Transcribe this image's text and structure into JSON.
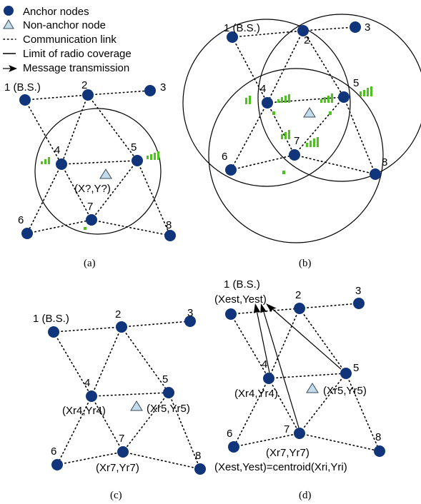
{
  "legend": {
    "anchor": "Anchor nodes",
    "non_anchor": "Non-anchor node",
    "link": "Communication link",
    "coverage": "Limit of radio coverage",
    "message": "Message transmission"
  },
  "captions": {
    "a": "(a)",
    "b": "(b)",
    "c": "(c)",
    "d": "(d)"
  },
  "labels": {
    "a": {
      "n1": "1 (B.S.)",
      "n2": "2",
      "n3": "3",
      "n4": "4",
      "n5": "5",
      "n6": "6",
      "n7": "7",
      "n8": "8",
      "unknown": "(X?,Y?)"
    },
    "b": {
      "n1": "1 (B.S.)",
      "n2": "2",
      "n3": "3",
      "n4": "4",
      "n5": "5",
      "n6": "6",
      "n7": "7",
      "n8": "8"
    },
    "c": {
      "n1": "1 (B.S.)",
      "n2": "2",
      "n3": "3",
      "n4": "4",
      "n5": "5",
      "n6": "6",
      "n7": "7",
      "n8": "8",
      "r4": "(Xr4,Yr4)",
      "r5": "(Xr5,Yr5)",
      "r7": "(Xr7,Yr7)"
    },
    "d": {
      "n1": "1 (B.S.)",
      "n2": "2",
      "n3": "3",
      "n4": "4",
      "n5": "5",
      "n6": "6",
      "n7": "7",
      "n8": "8",
      "est": "(Xest,Yest)",
      "r4": "(Xr4,Yr4)",
      "r5": "(Xr5,Yr5)",
      "r7": "(Xr7,Yr7)",
      "formula": "(Xest,Yest)=centroid(Xri,Yri)"
    }
  },
  "colors": {
    "node": "#10357a",
    "signal_bars": "#4ec21f",
    "non_anchor_fill": "#c4dcea"
  }
}
